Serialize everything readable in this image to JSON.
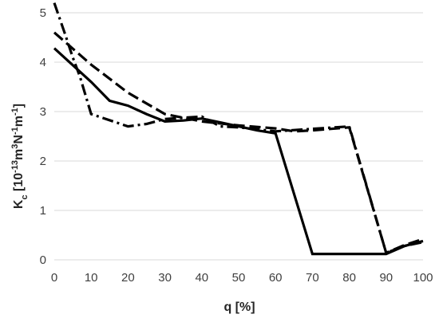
{
  "chart_data": {
    "type": "line",
    "xlabel": "q [%]",
    "ylabel": "Kc [10-13m3N-1m-1]",
    "ylabel_parts": {
      "k": "K",
      "sub": "c",
      "open": " [10",
      "exp1": "-13",
      "m1": "m",
      "exp2": "3",
      "n": "N",
      "exp3": "-1",
      "m2": "m",
      "exp4": "-1",
      "close": "]"
    },
    "xlim": [
      0,
      100
    ],
    "ylim": [
      0,
      5
    ],
    "xticks": [
      0,
      10,
      20,
      30,
      40,
      50,
      60,
      70,
      80,
      90,
      100
    ],
    "yticks": [
      0,
      1,
      2,
      3,
      4,
      5
    ],
    "grid": "horizontal",
    "legend": "none",
    "series": [
      {
        "style": "solid",
        "x": [
          0,
          10,
          15,
          20,
          25,
          30,
          35,
          40,
          45,
          50,
          55,
          60,
          70,
          90,
          95,
          100
        ],
        "y": [
          4.28,
          3.6,
          3.22,
          3.12,
          2.95,
          2.8,
          2.82,
          2.86,
          2.78,
          2.7,
          2.62,
          2.56,
          0.12,
          0.12,
          0.28,
          0.38
        ]
      },
      {
        "style": "dashed",
        "x": [
          0,
          10,
          20,
          30,
          40,
          50,
          60,
          65,
          70,
          75,
          80,
          90,
          95,
          100
        ],
        "y": [
          4.6,
          3.95,
          3.38,
          2.95,
          2.8,
          2.72,
          2.66,
          2.6,
          2.62,
          2.65,
          2.68,
          0.14,
          0.3,
          0.42
        ]
      },
      {
        "style": "dash-dot",
        "x": [
          0,
          3,
          5,
          7,
          10,
          20,
          25,
          30,
          40,
          45,
          50,
          60,
          70,
          80,
          90,
          95,
          100
        ],
        "y": [
          5.2,
          4.55,
          4.1,
          3.7,
          2.95,
          2.7,
          2.75,
          2.85,
          2.9,
          2.7,
          2.68,
          2.6,
          2.65,
          2.7,
          0.14,
          0.28,
          0.36
        ]
      }
    ]
  }
}
